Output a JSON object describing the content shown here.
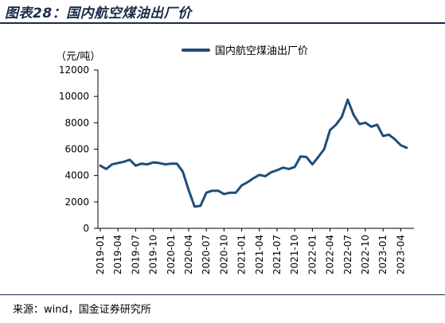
{
  "figure": {
    "title": "图表28：国内航空煤油出厂价",
    "source": "来源：wind，国金证券研究所"
  },
  "colors": {
    "line": "#1f4e79",
    "axis": "#000000",
    "title": "#1c2b4a"
  },
  "chart_data": {
    "type": "line",
    "title": "",
    "xlabel": "",
    "ylabel": "（元/吨）",
    "ylim": [
      0,
      12000
    ],
    "yticks": [
      0,
      2000,
      4000,
      6000,
      8000,
      10000,
      12000
    ],
    "ytick_labels": [
      "0",
      "2000",
      "4000",
      "6000",
      "8000",
      "10000",
      "12000"
    ],
    "grid": false,
    "legend_position": "top",
    "x_tick_labels": [
      "2019-01",
      "2019-04",
      "2019-07",
      "2019-10",
      "2020-01",
      "2020-04",
      "2020-07",
      "2020-10",
      "2021-01",
      "2021-04",
      "2021-07",
      "2021-10",
      "2022-01",
      "2022-04",
      "2022-07",
      "2022-10",
      "2023-01",
      "2023-04"
    ],
    "x": [
      "2019-01",
      "2019-02",
      "2019-03",
      "2019-04",
      "2019-05",
      "2019-06",
      "2019-07",
      "2019-08",
      "2019-09",
      "2019-10",
      "2019-11",
      "2019-12",
      "2020-01",
      "2020-02",
      "2020-03",
      "2020-04",
      "2020-05",
      "2020-06",
      "2020-07",
      "2020-08",
      "2020-09",
      "2020-10",
      "2020-11",
      "2020-12",
      "2021-01",
      "2021-02",
      "2021-03",
      "2021-04",
      "2021-05",
      "2021-06",
      "2021-07",
      "2021-08",
      "2021-09",
      "2021-10",
      "2021-11",
      "2021-12",
      "2022-01",
      "2022-02",
      "2022-03",
      "2022-04",
      "2022-05",
      "2022-06",
      "2022-07",
      "2022-08",
      "2022-09",
      "2022-10",
      "2022-11",
      "2022-12",
      "2023-01",
      "2023-02",
      "2023-03",
      "2023-04",
      "2023-05"
    ],
    "series": [
      {
        "name": "国内航空煤油出厂价",
        "values": [
          4750,
          4500,
          4850,
          4950,
          5050,
          5200,
          4750,
          4900,
          4850,
          5000,
          4950,
          4850,
          4900,
          4900,
          4300,
          2900,
          1650,
          1700,
          2700,
          2850,
          2850,
          2600,
          2700,
          2700,
          3250,
          3500,
          3800,
          4050,
          3950,
          4250,
          4400,
          4600,
          4500,
          4650,
          5450,
          5400,
          4850,
          5400,
          6000,
          7450,
          7850,
          8450,
          9750,
          8600,
          7900,
          8000,
          7700,
          7850,
          7000,
          7100,
          6750,
          6300,
          6100
        ]
      }
    ]
  }
}
